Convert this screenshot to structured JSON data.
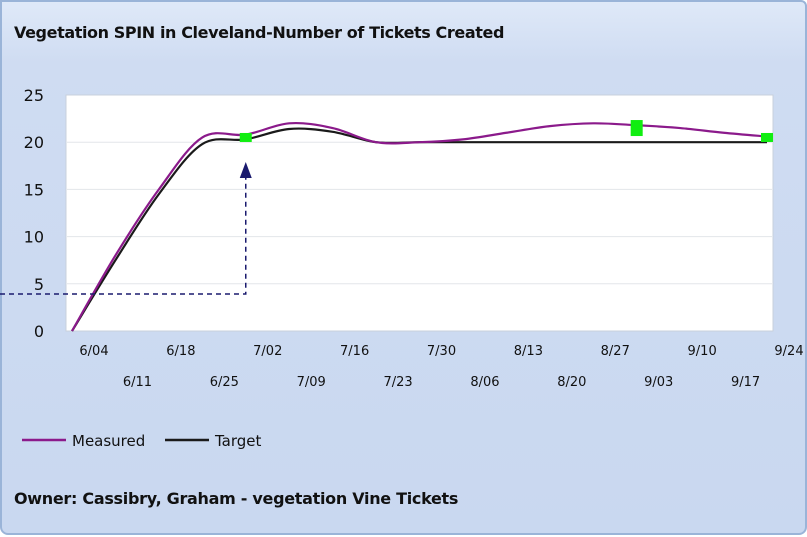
{
  "chart_data": {
    "type": "line",
    "title": "Vegetation SPIN in Cleveland-Number of Tickets Created",
    "x": [
      "6/04",
      "6/11",
      "6/18",
      "6/25",
      "7/02",
      "7/09",
      "7/16",
      "7/23",
      "7/30",
      "8/06",
      "8/13",
      "8/20",
      "8/27",
      "9/03",
      "9/10",
      "9/17",
      "9/24"
    ],
    "series": [
      {
        "name": "Measured",
        "color": "#8b1a8b",
        "values": [
          0,
          8,
          15,
          20.5,
          20.8,
          22,
          21.5,
          20,
          20,
          20.3,
          21,
          21.7,
          22,
          21.8,
          21.5,
          21,
          20.6
        ]
      },
      {
        "name": "Target",
        "color": "#1a1a1a",
        "values": [
          0,
          7.5,
          14.5,
          19.8,
          20.3,
          21.4,
          21.1,
          20,
          20,
          20,
          20,
          20,
          20,
          20,
          20,
          20,
          20
        ]
      }
    ],
    "markers": [
      {
        "x": "7/02",
        "value": 20.5
      },
      {
        "x": "9/03",
        "value": 21.5
      },
      {
        "x": "9/24",
        "value": 20.5
      }
    ],
    "ylim": [
      0,
      25
    ],
    "yticks": [
      0,
      5,
      10,
      15,
      20,
      25
    ],
    "grid": true,
    "legend": "bottom-left",
    "marker_color": "#11ee11",
    "annotation_color": "#1a1a6e"
  },
  "footer": {
    "owner": "Owner: Cassibry, Graham - vegetation Vine Tickets"
  }
}
